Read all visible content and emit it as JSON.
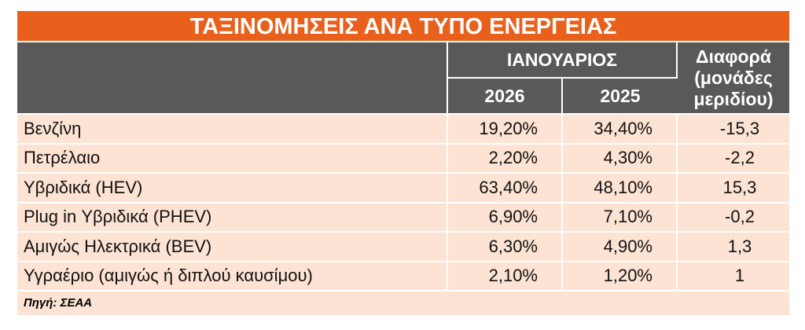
{
  "title": "ΤΑΞΙΝΟΜΗΣΕΙΣ ΑΝΑ ΤΥΠΟ ΕΝΕΡΓΕΙΑΣ",
  "table": {
    "header": {
      "group": "ΙΑΝΟΥΑΡΙΟΣ",
      "years": [
        "2026",
        "2025"
      ],
      "diff": "Διαφορά (μονάδες μεριδίου)"
    },
    "rows": [
      [
        "Βενζίνη",
        "19,20%",
        "34,40%",
        "-15,3"
      ],
      [
        "Πετρέλαιο",
        "2,20%",
        "4,30%",
        "-2,2"
      ],
      [
        "Υβριδικά (HEV)",
        "63,40%",
        "48,10%",
        "15,3"
      ],
      [
        "Plug in Υβριδικά (PHEV)",
        "6,90%",
        "7,10%",
        "-0,2"
      ],
      [
        "Αμιγώς Ηλεκτρικά (BEV)",
        "6,30%",
        "4,90%",
        "1,3"
      ],
      [
        "Υγραέριο (αμιγώς ή διπλού καυσίμου)",
        "2,10%",
        "1,20%",
        "1"
      ]
    ]
  },
  "source": "Πηγή: ΣΕΑΑ"
}
